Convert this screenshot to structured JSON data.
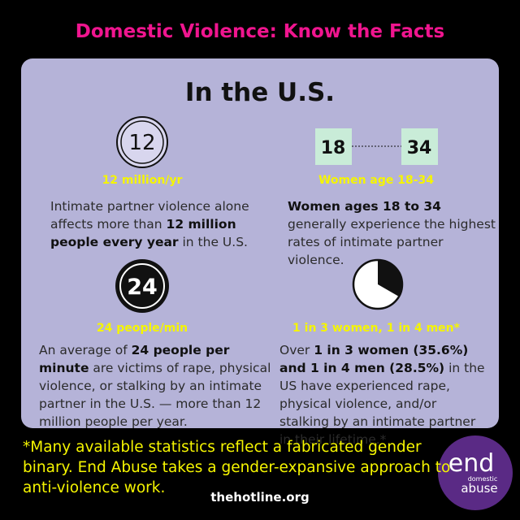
{
  "header": {
    "title": "Domestic Violence: Know the Facts"
  },
  "panel": {
    "heading": "In the U.S.",
    "facts": [
      {
        "icon_text": [
          "12"
        ],
        "label": "12 million/yr",
        "text": [
          {
            "t": "Intimate partner violence alone affects more than "
          },
          {
            "t": "12 million people every year",
            "bold": true
          },
          {
            "t": " in the U.S."
          }
        ]
      },
      {
        "icon_text": [
          "18",
          "34"
        ],
        "label": "Women age 18-34",
        "text": [
          {
            "t": "Women ages 18 to 34",
            "bold": true
          },
          {
            "t": " generally experience the highest rates of intimate partner violence."
          }
        ]
      },
      {
        "icon_text": [
          "24"
        ],
        "label": "24 people/min",
        "text": [
          {
            "t": "An average of "
          },
          {
            "t": "24 people per minute",
            "bold": true
          },
          {
            "t": " are victims of rape, physical violence, or stalking by an intimate partner in the U.S. — more than 12 million people per year."
          }
        ]
      },
      {
        "label": "1 in 3 women, 1 in 4 men*",
        "text": [
          {
            "t": "Over "
          },
          {
            "t": "1 in 3 women (35.6%) and 1 in 4 men (28.5%)",
            "bold": true
          },
          {
            "t": " in the US have experienced rape, physical violence, and/or stalking by an intimate partner in their lifetime.*"
          }
        ]
      }
    ]
  },
  "footer": {
    "note": "*Many available statistics reflect a fabricated gender binary. End Abuse takes a gender-expansive approach to anti-violence work.",
    "url": "thehotline.org",
    "logo": {
      "word": "end",
      "line1": "domestic",
      "line2": "abuse"
    }
  }
}
